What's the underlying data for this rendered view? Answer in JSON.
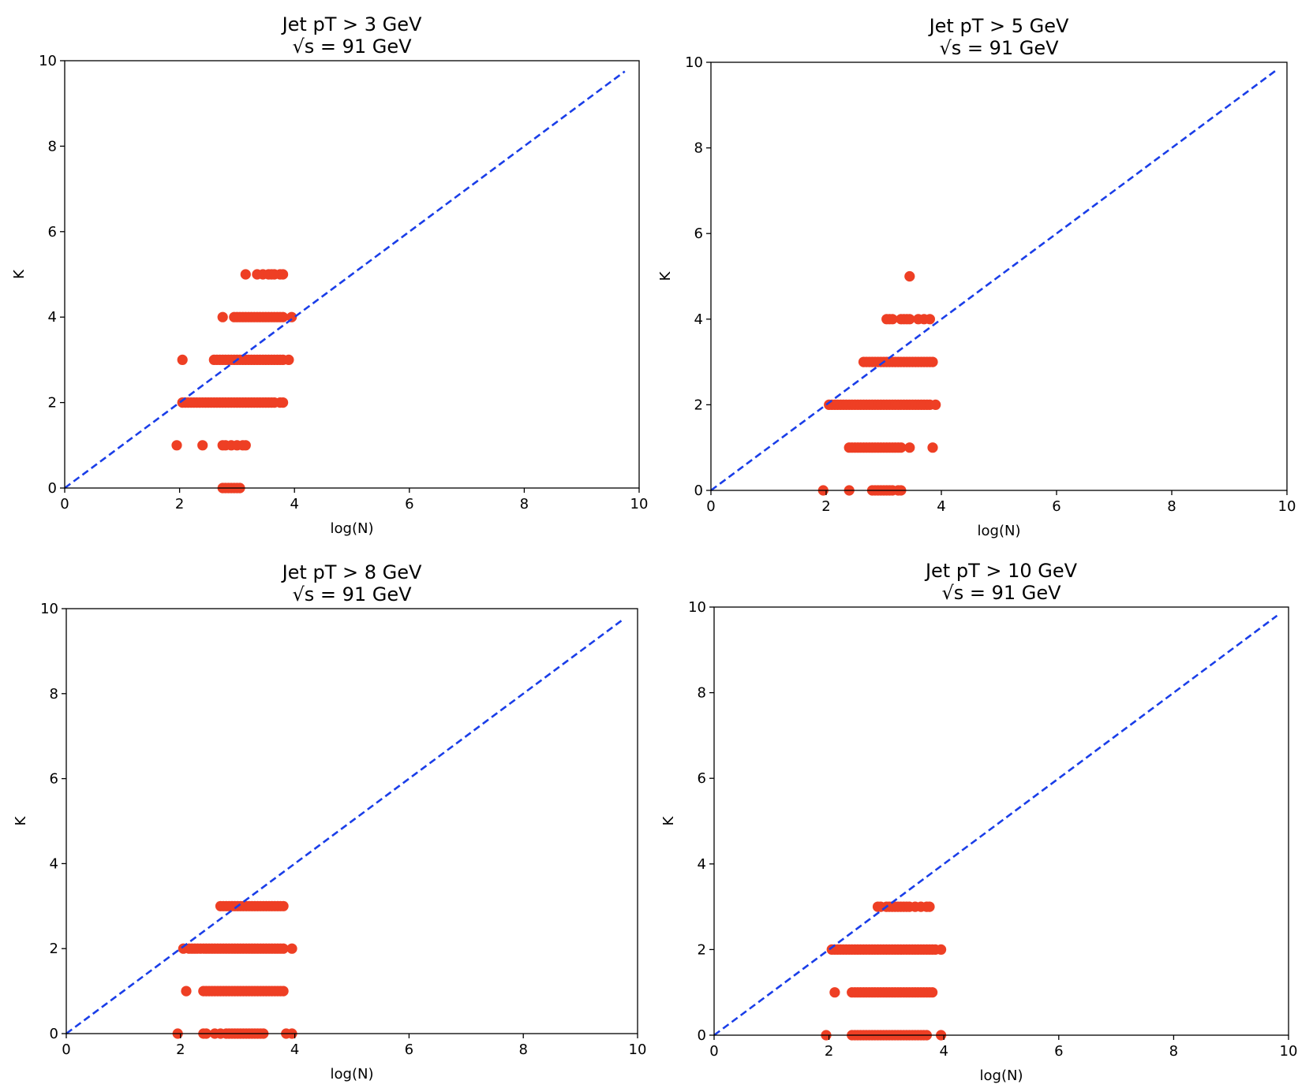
{
  "colors": {
    "points": "#ee3f24",
    "reference_line": "#1a3ee8",
    "axes": "#000000"
  },
  "chart_data": [
    {
      "type": "scatter",
      "title": "Jet pT > 3 GeV",
      "subtitle": "√s = 91 GeV",
      "xlabel": "log(N)",
      "ylabel": "K",
      "xlim": [
        0,
        10
      ],
      "ylim": [
        0,
        10
      ],
      "xticks": [
        "0",
        "2",
        "4",
        "6",
        "8",
        "10"
      ],
      "yticks": [
        "0",
        "2",
        "4",
        "6",
        "8",
        "10"
      ],
      "reference_line": {
        "style": "dashed",
        "from": [
          0,
          0
        ],
        "to": [
          9.75,
          9.75
        ]
      },
      "points": [
        {
          "k": 0,
          "x": [
            2.75,
            2.8,
            2.85,
            2.9,
            2.95,
            3.0,
            3.05
          ]
        },
        {
          "k": 1,
          "x": [
            1.95,
            2.4,
            2.75,
            2.8,
            2.9,
            3.0,
            3.1,
            3.15
          ]
        },
        {
          "k": 2,
          "x": [
            2.05,
            2.1,
            2.15,
            2.2,
            2.25,
            2.3,
            2.35,
            2.4,
            2.45,
            2.5,
            2.55,
            2.6,
            2.65,
            2.7,
            2.75,
            2.8,
            2.85,
            2.9,
            2.95,
            3.0,
            3.05,
            3.1,
            3.15,
            3.2,
            3.25,
            3.3,
            3.35,
            3.4,
            3.45,
            3.5,
            3.55,
            3.6,
            3.65,
            3.75,
            3.8
          ]
        },
        {
          "k": 3,
          "x": [
            2.05,
            2.6,
            2.65,
            2.7,
            2.75,
            2.8,
            2.85,
            2.9,
            2.95,
            3.0,
            3.05,
            3.1,
            3.15,
            3.2,
            3.25,
            3.3,
            3.35,
            3.4,
            3.45,
            3.5,
            3.55,
            3.6,
            3.65,
            3.7,
            3.75,
            3.8,
            3.9
          ]
        },
        {
          "k": 4,
          "x": [
            2.75,
            2.95,
            3.0,
            3.05,
            3.1,
            3.15,
            3.2,
            3.25,
            3.3,
            3.35,
            3.4,
            3.45,
            3.5,
            3.55,
            3.6,
            3.65,
            3.7,
            3.75,
            3.8,
            3.95
          ]
        },
        {
          "k": 5,
          "x": [
            3.15,
            3.35,
            3.45,
            3.55,
            3.6,
            3.65,
            3.75,
            3.8
          ]
        }
      ]
    },
    {
      "type": "scatter",
      "title": "Jet pT > 5 GeV",
      "subtitle": "√s = 91 GeV",
      "xlabel": "log(N)",
      "ylabel": "K",
      "xlim": [
        0,
        10
      ],
      "ylim": [
        0,
        10
      ],
      "xticks": [
        "0",
        "2",
        "4",
        "6",
        "8",
        "10"
      ],
      "yticks": [
        "0",
        "2",
        "4",
        "6",
        "8",
        "10"
      ],
      "reference_line": {
        "style": "dashed",
        "from": [
          0,
          0
        ],
        "to": [
          9.8,
          9.8
        ]
      },
      "points": [
        {
          "k": 0,
          "x": [
            1.95,
            2.4,
            2.8,
            2.85,
            2.9,
            2.95,
            3.0,
            3.05,
            3.1,
            3.15,
            3.25,
            3.3
          ]
        },
        {
          "k": 1,
          "x": [
            2.4,
            2.45,
            2.5,
            2.55,
            2.6,
            2.65,
            2.7,
            2.75,
            2.8,
            2.85,
            2.9,
            2.95,
            3.0,
            3.05,
            3.1,
            3.15,
            3.2,
            3.25,
            3.3,
            3.45,
            3.85
          ]
        },
        {
          "k": 2,
          "x": [
            2.05,
            2.1,
            2.15,
            2.2,
            2.25,
            2.3,
            2.35,
            2.4,
            2.45,
            2.5,
            2.55,
            2.6,
            2.65,
            2.7,
            2.75,
            2.8,
            2.85,
            2.9,
            2.95,
            3.0,
            3.05,
            3.1,
            3.15,
            3.2,
            3.25,
            3.3,
            3.35,
            3.4,
            3.45,
            3.5,
            3.55,
            3.6,
            3.65,
            3.7,
            3.75,
            3.8,
            3.9
          ]
        },
        {
          "k": 3,
          "x": [
            2.65,
            2.7,
            2.75,
            2.8,
            2.85,
            2.9,
            2.95,
            3.0,
            3.05,
            3.1,
            3.15,
            3.2,
            3.25,
            3.3,
            3.35,
            3.4,
            3.45,
            3.5,
            3.55,
            3.6,
            3.65,
            3.7,
            3.75,
            3.8,
            3.85
          ]
        },
        {
          "k": 4,
          "x": [
            3.05,
            3.1,
            3.15,
            3.3,
            3.35,
            3.4,
            3.45,
            3.6,
            3.7,
            3.8
          ]
        },
        {
          "k": 5,
          "x": [
            3.45
          ]
        }
      ]
    },
    {
      "type": "scatter",
      "title": "Jet pT > 8 GeV",
      "subtitle": "√s = 91 GeV",
      "xlabel": "log(N)",
      "ylabel": "K",
      "xlim": [
        0,
        10
      ],
      "ylim": [
        0,
        10
      ],
      "xticks": [
        "0",
        "2",
        "4",
        "6",
        "8",
        "10"
      ],
      "yticks": [
        "0",
        "2",
        "4",
        "6",
        "8",
        "10"
      ],
      "reference_line": {
        "style": "dashed",
        "from": [
          0,
          0
        ],
        "to": [
          9.75,
          9.75
        ]
      },
      "points": [
        {
          "k": 0,
          "x": [
            1.95,
            2.4,
            2.45,
            2.6,
            2.7,
            2.8,
            2.85,
            2.9,
            2.95,
            3.0,
            3.05,
            3.1,
            3.15,
            3.2,
            3.25,
            3.3,
            3.35,
            3.4,
            3.45,
            3.85,
            3.95
          ]
        },
        {
          "k": 1,
          "x": [
            2.1,
            2.4,
            2.45,
            2.5,
            2.55,
            2.6,
            2.65,
            2.7,
            2.75,
            2.8,
            2.85,
            2.9,
            2.95,
            3.0,
            3.05,
            3.1,
            3.15,
            3.2,
            3.25,
            3.3,
            3.35,
            3.4,
            3.45,
            3.5,
            3.55,
            3.6,
            3.65,
            3.7,
            3.75,
            3.8
          ]
        },
        {
          "k": 2,
          "x": [
            2.05,
            2.15,
            2.2,
            2.25,
            2.3,
            2.35,
            2.4,
            2.45,
            2.5,
            2.55,
            2.6,
            2.65,
            2.7,
            2.75,
            2.8,
            2.85,
            2.9,
            2.95,
            3.0,
            3.05,
            3.1,
            3.15,
            3.2,
            3.25,
            3.3,
            3.35,
            3.4,
            3.45,
            3.5,
            3.55,
            3.6,
            3.65,
            3.7,
            3.75,
            3.8,
            3.95
          ]
        },
        {
          "k": 3,
          "x": [
            2.7,
            2.75,
            2.8,
            2.85,
            2.9,
            2.95,
            3.0,
            3.05,
            3.1,
            3.15,
            3.2,
            3.25,
            3.3,
            3.35,
            3.4,
            3.45,
            3.5,
            3.55,
            3.6,
            3.65,
            3.7,
            3.75,
            3.8
          ]
        }
      ]
    },
    {
      "type": "scatter",
      "title": "Jet pT > 10 GeV",
      "subtitle": "√s = 91 GeV",
      "xlabel": "log(N)",
      "ylabel": "K",
      "xlim": [
        0,
        10
      ],
      "ylim": [
        0,
        10
      ],
      "xticks": [
        "0",
        "2",
        "4",
        "6",
        "8",
        "10"
      ],
      "yticks": [
        "0",
        "2",
        "4",
        "6",
        "8",
        "10"
      ],
      "reference_line": {
        "style": "dashed",
        "from": [
          0,
          0
        ],
        "to": [
          9.8,
          9.8
        ]
      },
      "points": [
        {
          "k": 0,
          "x": [
            1.95,
            2.4,
            2.45,
            2.5,
            2.55,
            2.6,
            2.65,
            2.7,
            2.75,
            2.8,
            2.85,
            2.9,
            2.95,
            3.0,
            3.05,
            3.1,
            3.15,
            3.2,
            3.25,
            3.3,
            3.35,
            3.4,
            3.45,
            3.5,
            3.55,
            3.6,
            3.65,
            3.7,
            3.95
          ]
        },
        {
          "k": 1,
          "x": [
            2.1,
            2.4,
            2.45,
            2.5,
            2.55,
            2.6,
            2.65,
            2.7,
            2.75,
            2.8,
            2.85,
            2.9,
            2.95,
            3.0,
            3.05,
            3.1,
            3.15,
            3.2,
            3.25,
            3.3,
            3.35,
            3.4,
            3.45,
            3.5,
            3.55,
            3.6,
            3.65,
            3.7,
            3.75,
            3.8
          ]
        },
        {
          "k": 2,
          "x": [
            2.05,
            2.1,
            2.15,
            2.2,
            2.25,
            2.3,
            2.35,
            2.4,
            2.45,
            2.5,
            2.55,
            2.6,
            2.65,
            2.7,
            2.75,
            2.8,
            2.85,
            2.9,
            2.95,
            3.0,
            3.05,
            3.1,
            3.15,
            3.2,
            3.25,
            3.3,
            3.35,
            3.4,
            3.45,
            3.5,
            3.55,
            3.6,
            3.65,
            3.7,
            3.75,
            3.8,
            3.85,
            3.95
          ]
        },
        {
          "k": 3,
          "x": [
            2.85,
            2.9,
            3.0,
            3.05,
            3.1,
            3.15,
            3.2,
            3.25,
            3.3,
            3.35,
            3.4,
            3.5,
            3.6,
            3.7,
            3.75
          ]
        }
      ]
    }
  ]
}
